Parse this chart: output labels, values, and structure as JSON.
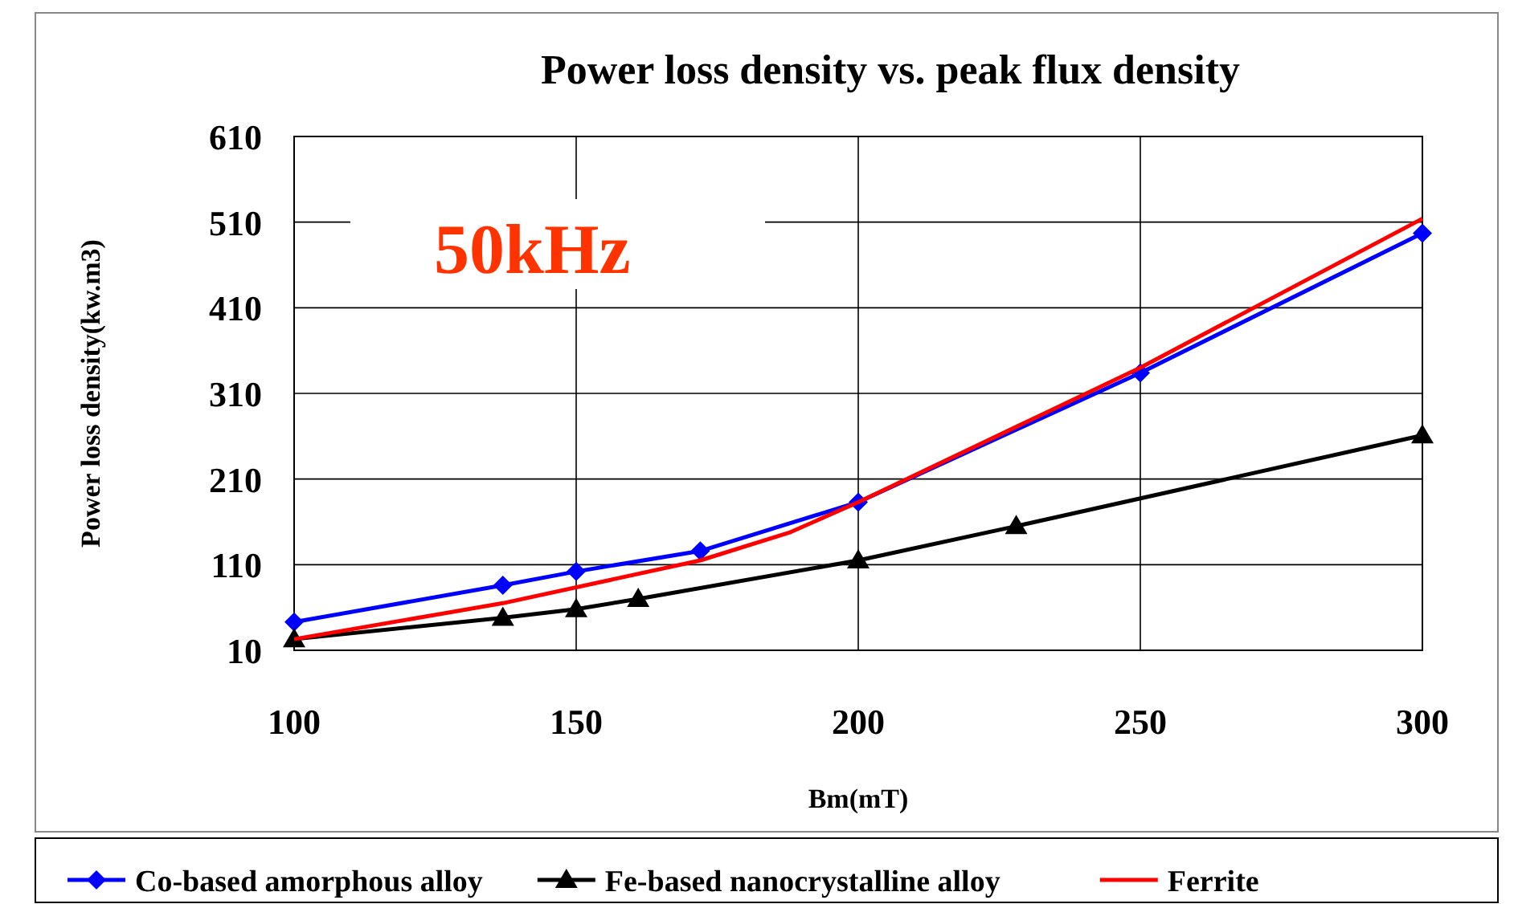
{
  "chart_data": {
    "type": "line",
    "title": "Power loss density vs. peak  flux density",
    "xlabel": "Bm(mT)",
    "ylabel": "Power loss density(kw.m3)",
    "annotations": [
      "50kHz"
    ],
    "xlim": [
      100,
      300
    ],
    "xticks": [
      100,
      150,
      200,
      250,
      300
    ],
    "ylim": [
      10,
      610
    ],
    "yticks": [
      10,
      110,
      210,
      310,
      410,
      510,
      610
    ],
    "grid": true,
    "legend": "bottom",
    "series": [
      {
        "name": "Co-based amorphous alloy",
        "color": "#0000ff",
        "marker": "diamond",
        "x": [
          100,
          137,
          150,
          172,
          200,
          250,
          300
        ],
        "values": [
          43,
          86,
          102,
          126,
          183,
          334,
          497
        ]
      },
      {
        "name": "Fe-based nanocrystalline alloy",
        "color": "#000000",
        "marker": "triangle",
        "x": [
          100,
          137,
          150,
          161,
          200,
          228,
          300
        ],
        "values": [
          23,
          48,
          58,
          70,
          115,
          155,
          261
        ]
      },
      {
        "name": "Ferrite",
        "color": "#ff0000",
        "marker": "none",
        "x": [
          100,
          137,
          172,
          188,
          200,
          250,
          300
        ],
        "values": [
          23,
          65,
          115,
          148,
          183,
          340,
          514
        ]
      }
    ]
  }
}
